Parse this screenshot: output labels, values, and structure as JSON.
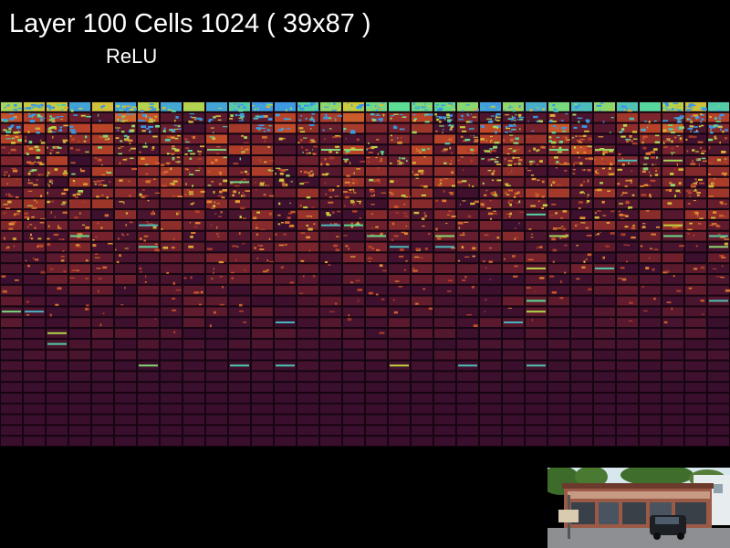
{
  "header": {
    "title": "Layer 100 Cells 1024 ( 39x87 )",
    "subtitle": "ReLU"
  },
  "grid": {
    "columns": 32,
    "rows": 32,
    "cell_count": 1024,
    "background_color": "#3a0f2e",
    "border_color": "#140510"
  },
  "thumbnail": {
    "name": "input-photo-storefront"
  },
  "colors": {
    "background": "#000000",
    "text": "#ffffff"
  }
}
